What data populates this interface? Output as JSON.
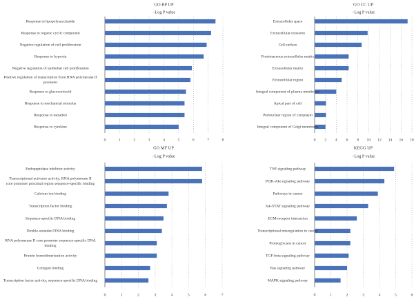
{
  "chart_data": [
    {
      "type": "bar",
      "orientation": "horizontal",
      "title": "GO BP UP",
      "xlabel": "−Log P value",
      "xlim": [
        0,
        8
      ],
      "xticks": [
        0,
        1,
        2,
        3,
        4,
        5,
        6,
        7,
        8
      ],
      "grid": true,
      "categories": [
        "Response to lipopolysaccharide",
        "Response to organic cyclic compound",
        "Negative regulation of cell proliferation",
        "Response to hypoxia",
        "Negative regulation of epithelial cell proliferation",
        [
          "Positive regulation of transcription from RNA polymerase II",
          "promoter"
        ],
        "Response to glucocorticoid",
        "Response to mechanical stimulus",
        "Response to estradiol",
        "Response to cytokine"
      ],
      "values": [
        7.5,
        7.2,
        6.9,
        6.7,
        5.9,
        5.8,
        5.5,
        5.4,
        5.4,
        5.0
      ],
      "color": "#4a72b8"
    },
    {
      "type": "bar",
      "orientation": "horizontal",
      "title": "GO CC UP",
      "xlabel": "−Log P value",
      "xlim": [
        0,
        18
      ],
      "xticks": [
        0,
        2,
        4,
        6,
        8,
        10,
        12,
        14,
        16,
        18
      ],
      "grid": true,
      "categories": [
        "Extracellular space",
        "Extracellular exosome",
        "Cell surface",
        "Proteinaceous extracellular matrix",
        "Extracellular matrix",
        "Extracellular region",
        "Integral component of plasma membrane",
        "Apical part of cell",
        "Perinuclear region of cytoplasm",
        "Integral component of Golgi membrane"
      ],
      "values": [
        17.2,
        9.8,
        8.7,
        6.3,
        6.3,
        5.0,
        4.0,
        2.1,
        2.1,
        2.0
      ],
      "color": "#4a72b8"
    },
    {
      "type": "bar",
      "orientation": "horizontal",
      "title": "GO MF UP",
      "xlabel": "−Log P value",
      "xlim": [
        0,
        7
      ],
      "xticks": [
        0,
        1,
        2,
        3,
        4,
        5,
        6,
        7
      ],
      "grid": true,
      "categories": [
        "Endopeptidase inhibitor activity",
        [
          "Transcriptional activator activity, RNA polymerase II",
          "core promoter proximal region sequence-specific binding"
        ],
        "Calcium ion binding",
        "Transcription factor binding",
        "Sequence-specific DNA binding",
        "Double-stranded DNA binding",
        [
          "RNA polymerase II core promoter sequence-specific DNA",
          "binding"
        ],
        "Protein homodimerization activity",
        "Collagen binding",
        "Transcription factor activity, sequence-specific DNA binding"
      ],
      "values": [
        5.8,
        5.8,
        3.8,
        3.7,
        3.5,
        3.4,
        3.1,
        3.1,
        2.7,
        2.6
      ],
      "color": "#4a72b8"
    },
    {
      "type": "bar",
      "orientation": "horizontal",
      "title": "KEGG UP",
      "xlabel": "−Log P value",
      "xlim": [
        0,
        6
      ],
      "xticks": [
        0,
        1,
        2,
        3,
        4,
        5,
        6
      ],
      "grid": true,
      "categories": [
        "TNF signaling pathway",
        "PI3K-Akt signaling pathway",
        "Pathways in cancer",
        "Jak-STAT signaling pathway",
        "ECM-receptor interaction",
        "Transcriptional misregulation in cancer",
        "Proteoglycans in cancer",
        "TGF-beta signaling pathway",
        "Ras signaling pathway",
        "MAPK signaling pathway"
      ],
      "values": [
        4.9,
        4.3,
        3.9,
        3.3,
        2.6,
        2.2,
        2.2,
        2.1,
        2.0,
        1.6
      ],
      "color": "#4a72b8"
    }
  ]
}
